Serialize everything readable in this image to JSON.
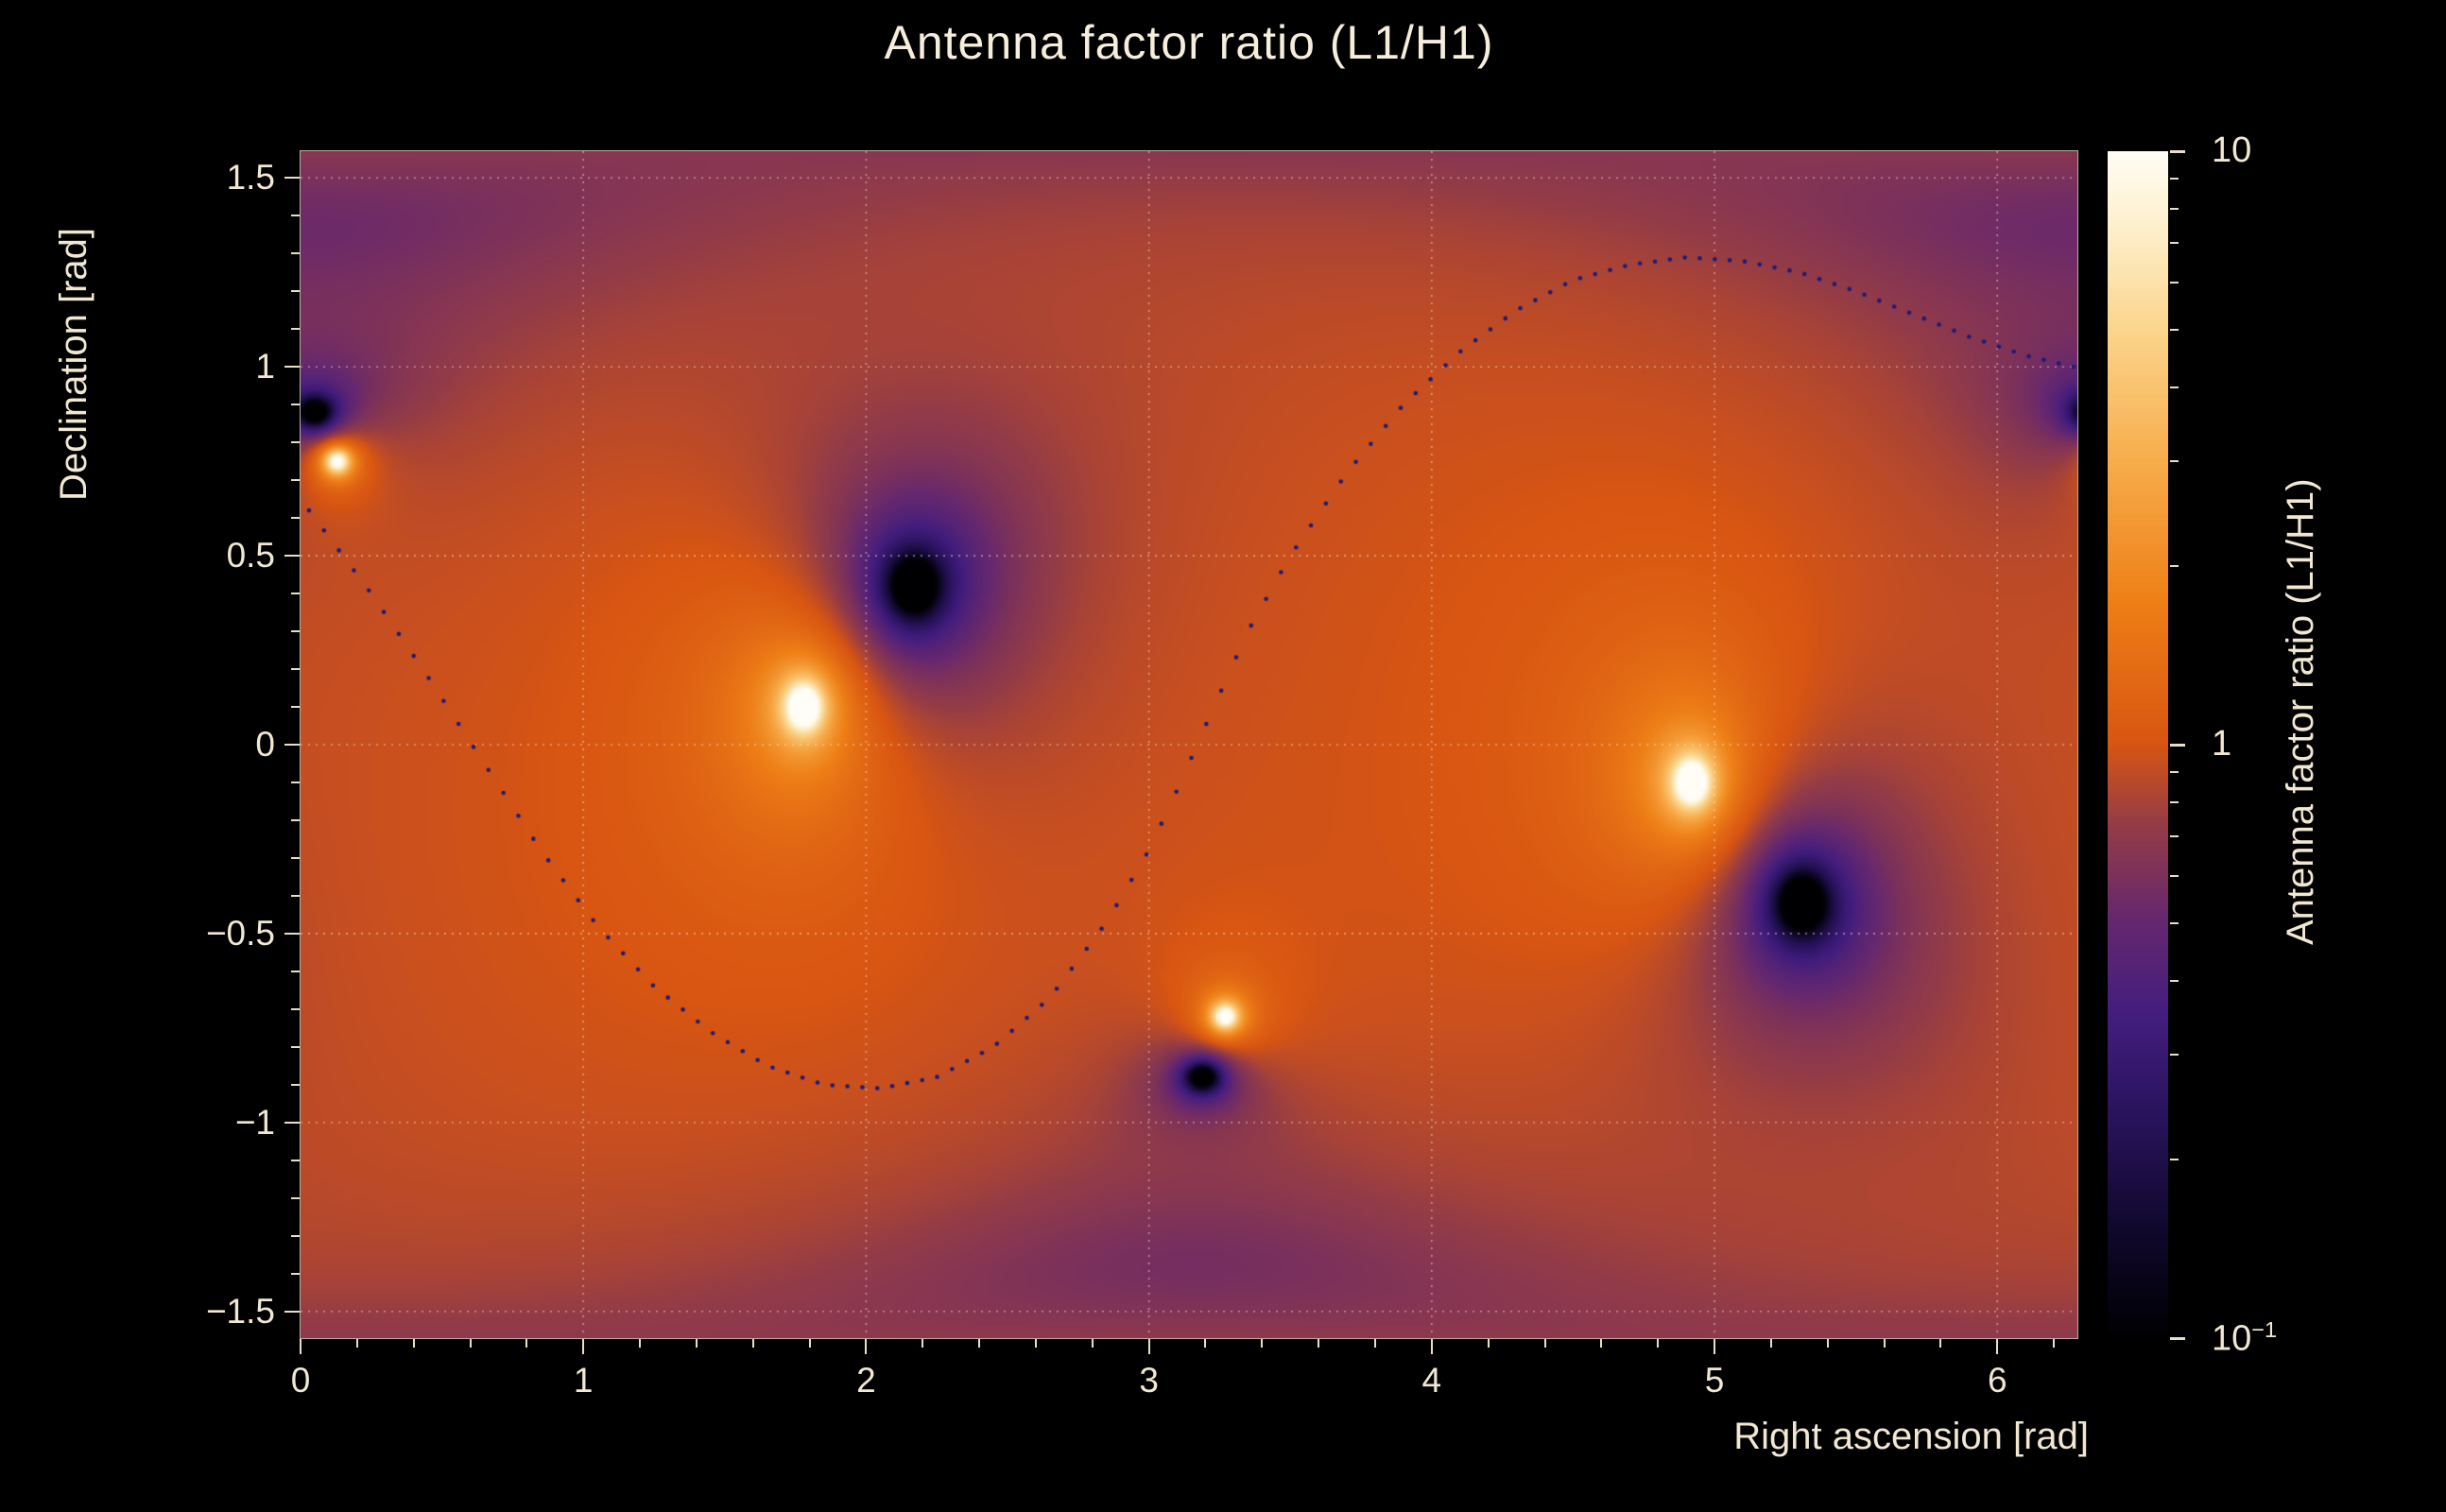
{
  "figure": {
    "background": "#000000",
    "text_color": "#f2e8d2"
  },
  "chart_data": {
    "type": "heatmap",
    "title": "Antenna factor ratio (L1/H1)",
    "xlabel": "Right ascension [rad]",
    "ylabel": "Declination [rad]",
    "colorbar_label": "Antenna factor ratio (L1/H1)",
    "x_range_rad": [
      0,
      6.2832
    ],
    "y_range_rad": [
      -1.5708,
      1.5708
    ],
    "x_ticks": {
      "values": [
        0,
        1,
        2,
        3,
        4,
        5,
        6
      ],
      "labels": [
        "0",
        "1",
        "2",
        "3",
        "4",
        "5",
        "6"
      ],
      "minor_step": 0.2
    },
    "y_ticks": {
      "values": [
        1.5,
        1,
        0.5,
        0,
        -0.5,
        -1,
        -1.5
      ],
      "labels": [
        "1.5",
        "1",
        "0.5",
        "0",
        "−0.5",
        "−1",
        "−1.5"
      ],
      "minor_step": 0.1
    },
    "z_scale": "log10",
    "z_range": [
      0.1,
      10
    ],
    "background_ratio": 1.0,
    "colorbar_ticks": {
      "major": [
        {
          "value": 10,
          "label": "10",
          "sup": ""
        },
        {
          "value": 1,
          "label": "1",
          "sup": ""
        },
        {
          "value": 0.1,
          "label": "10",
          "sup": "−1"
        }
      ],
      "minor_values": [
        0.2,
        0.3,
        0.4,
        0.5,
        0.6,
        0.7,
        0.8,
        0.9,
        2,
        3,
        4,
        5,
        6,
        7,
        8,
        9
      ]
    },
    "grid": {
      "style": "dotted",
      "color": "rgba(253,240,220,0.5)"
    },
    "colormap_stops": [
      [
        0.0,
        "#000003"
      ],
      [
        0.09,
        "#10082c"
      ],
      [
        0.18,
        "#27125a"
      ],
      [
        0.27,
        "#421d7e"
      ],
      [
        0.35,
        "#65276f"
      ],
      [
        0.43,
        "#933b47"
      ],
      [
        0.5,
        "#d85512"
      ],
      [
        0.62,
        "#ee7f16"
      ],
      [
        0.74,
        "#f7ad4c"
      ],
      [
        0.85,
        "#fbd58d"
      ],
      [
        0.93,
        "#fdeec8"
      ],
      [
        1.0,
        "#fffdf5"
      ]
    ],
    "field_model": {
      "description": "log10 of antenna factor ratio L1/H1 over the sky; bright maxima at H1 antenna-pattern nulls, dark minima at L1 nulls; antipodal pairs",
      "maxima": [
        {
          "ra": 1.78,
          "dec": 0.1,
          "core_amp": 1.6,
          "core_sigma": 0.055,
          "halo_amp": 0.3,
          "halo_sigma": 0.4
        },
        {
          "ra": 4.92,
          "dec": -0.1,
          "core_amp": 1.6,
          "core_sigma": 0.055,
          "halo_amp": 0.3,
          "halo_sigma": 0.4
        },
        {
          "ra": 3.27,
          "dec": -0.72,
          "core_amp": 1.35,
          "core_sigma": 0.032,
          "halo_amp": 0.12,
          "halo_sigma": 0.18
        },
        {
          "ra": 0.13,
          "dec": 0.75,
          "core_amp": 1.35,
          "core_sigma": 0.032,
          "halo_amp": 0.12,
          "halo_sigma": 0.18
        }
      ],
      "minima": [
        {
          "ra": 2.17,
          "dec": 0.42,
          "core_amp": 1.7,
          "core_sigma": 0.06,
          "halo_amp": 0.4,
          "halo_sigma": 0.35
        },
        {
          "ra": 5.31,
          "dec": -0.42,
          "core_amp": 1.7,
          "core_sigma": 0.06,
          "halo_amp": 0.4,
          "halo_sigma": 0.35
        },
        {
          "ra": 3.19,
          "dec": -0.88,
          "core_amp": 1.4,
          "core_sigma": 0.032,
          "halo_amp": 0.15,
          "halo_sigma": 0.18
        },
        {
          "ra": 0.05,
          "dec": 0.88,
          "core_amp": 1.4,
          "core_sigma": 0.032,
          "halo_amp": 0.25,
          "halo_sigma": 0.25
        },
        {
          "ra": 0.0,
          "dec": 1.38,
          "core_amp": 0.0,
          "core_sigma": 0.1,
          "halo_amp": 0.22,
          "halo_sigma": 0.25
        },
        {
          "ra": 3.1416,
          "dec": -1.38,
          "core_amp": 0.0,
          "core_sigma": 0.1,
          "halo_amp": 0.22,
          "halo_sigma": 0.25
        }
      ]
    },
    "trajectory": {
      "style": "dotted",
      "color": "#1c1c78",
      "points_ra_dec": [
        [
          0.03,
          0.62
        ],
        [
          0.25,
          0.4
        ],
        [
          0.45,
          0.18
        ],
        [
          0.65,
          -0.05
        ],
        [
          0.85,
          -0.28
        ],
        [
          1.05,
          -0.48
        ],
        [
          1.25,
          -0.64
        ],
        [
          1.45,
          -0.76
        ],
        [
          1.65,
          -0.85
        ],
        [
          1.85,
          -0.9
        ],
        [
          2.05,
          -0.91
        ],
        [
          2.25,
          -0.88
        ],
        [
          2.45,
          -0.8
        ],
        [
          2.65,
          -0.67
        ],
        [
          2.85,
          -0.47
        ],
        [
          3.0,
          -0.28
        ],
        [
          3.1,
          -0.12
        ],
        [
          3.2,
          0.05
        ],
        [
          3.35,
          0.3
        ],
        [
          3.5,
          0.5
        ],
        [
          3.7,
          0.72
        ],
        [
          3.9,
          0.9
        ],
        [
          4.1,
          1.04
        ],
        [
          4.3,
          1.15
        ],
        [
          4.5,
          1.23
        ],
        [
          4.7,
          1.27
        ],
        [
          4.9,
          1.29
        ],
        [
          5.1,
          1.28
        ],
        [
          5.3,
          1.25
        ],
        [
          5.5,
          1.2
        ],
        [
          5.7,
          1.14
        ],
        [
          5.9,
          1.08
        ],
        [
          6.1,
          1.03
        ],
        [
          6.27,
          1.0
        ]
      ]
    }
  }
}
